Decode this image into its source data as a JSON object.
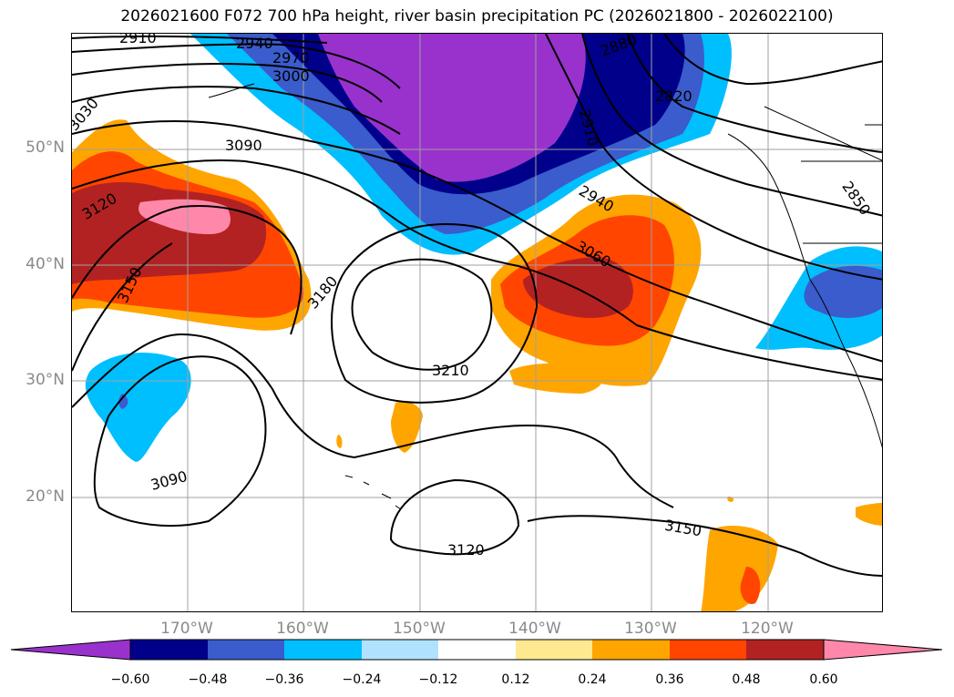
{
  "title": "2026021600 F072 700 hPa height, river basin precipitation PC (2026021800 - 2026022100)",
  "lat_labels": [
    {
      "text": "50°N",
      "lat": 50
    },
    {
      "text": "40°N",
      "lat": 40
    },
    {
      "text": "30°N",
      "lat": 30
    },
    {
      "text": "20°N",
      "lat": 20
    }
  ],
  "lon_labels": [
    {
      "text": "170°W",
      "lon": -170
    },
    {
      "text": "160°W",
      "lon": -160
    },
    {
      "text": "150°W",
      "lon": -150
    },
    {
      "text": "140°W",
      "lon": -140
    },
    {
      "text": "130°W",
      "lon": -130
    },
    {
      "text": "120°W",
      "lon": -120
    }
  ],
  "map_extent": {
    "lon_min": -180,
    "lon_max": -110,
    "lat_min": 10,
    "lat_max": 60
  },
  "colorbar": {
    "ticks": [
      "−0.60",
      "−0.48",
      "−0.36",
      "−0.24",
      "−0.12",
      "0.12",
      "0.24",
      "0.36",
      "0.48",
      "0.60"
    ],
    "colors": [
      "#9932cc",
      "#00008b",
      "#3a5ccc",
      "#00bfff",
      "#b0e2ff",
      "#ffffff",
      "#ffe990",
      "#ffa500",
      "#ff4500",
      "#b22222",
      "#ff88aa"
    ]
  },
  "contour_labels": [
    "2910",
    "2940",
    "2970",
    "3000",
    "3030",
    "3090",
    "3120",
    "3150",
    "3180",
    "3210",
    "3090",
    "3120",
    "3150",
    "2820",
    "2910",
    "2940",
    "3060",
    "2850",
    "2880"
  ],
  "chart_data": {
    "type": "map",
    "variable_contours": "700 hPa height",
    "variable_shaded": "river basin precipitation PC",
    "contour_levels_labeled": [
      2820,
      2850,
      2880,
      2910,
      2940,
      2970,
      3000,
      3030,
      3060,
      3090,
      3120,
      3150,
      3180,
      3210
    ],
    "shading_levels": [
      -0.6,
      -0.48,
      -0.36,
      -0.24,
      -0.12,
      0.12,
      0.24,
      0.36,
      0.48,
      0.6
    ]
  }
}
